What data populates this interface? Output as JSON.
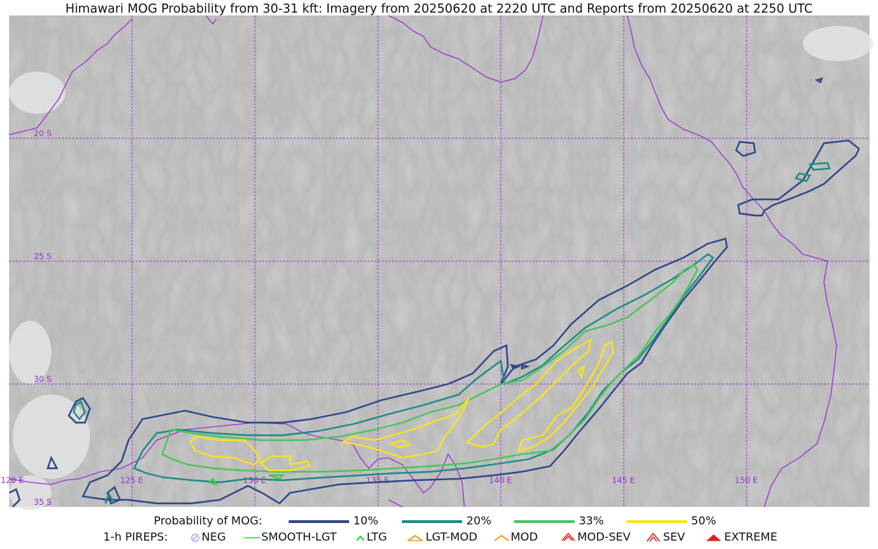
{
  "title": "Himawari MOG Probability from 30-31 kft: Imagery from 20250620 at 2220 UTC and Reports from 20250620 at 2250 UTC",
  "map": {
    "gridlines": {
      "color": "#9b30d0",
      "lat_labels": [
        "20 S",
        "25 S",
        "30 S",
        "35 S"
      ],
      "lon_labels": [
        "120 E",
        "125 E",
        "130 E",
        "135 E",
        "140 E",
        "145 E",
        "150 E"
      ]
    },
    "contour_levels": [
      {
        "label": "10%",
        "color": "#30478a"
      },
      {
        "label": "20%",
        "color": "#1e8c85"
      },
      {
        "label": "33%",
        "color": "#4cc55a"
      },
      {
        "label": "50%",
        "color": "#f8e221"
      }
    ],
    "coastline_color": "#9b30d0"
  },
  "legend": {
    "probability_title": "Probability of MOG:",
    "levels": [
      "10%",
      "20%",
      "33%",
      "50%"
    ],
    "pirep_title": "1-h PIREPS:",
    "pireps": [
      {
        "label": "NEG",
        "color": "#b8b8f0",
        "icon": "neg-circle-icon"
      },
      {
        "label": "SMOOTH-LGT",
        "color": "#33cc33",
        "icon": "smooth-lgt-line-icon"
      },
      {
        "label": "LTG",
        "color": "#22cc22",
        "icon": "ltg-caret-icon"
      },
      {
        "label": "LGT-MOD",
        "color": "#f0a020",
        "icon": "lgt-mod-caret-icon"
      },
      {
        "label": "MOD",
        "color": "#f0a020",
        "icon": "mod-caret-icon"
      },
      {
        "label": "MOD-SEV",
        "color": "#e02020",
        "icon": "mod-sev-caret-icon"
      },
      {
        "label": "SEV",
        "color": "#e02020",
        "icon": "sev-caret-icon"
      },
      {
        "label": "EXTREME",
        "color": "#e02020",
        "icon": "extreme-caret-icon"
      }
    ]
  }
}
